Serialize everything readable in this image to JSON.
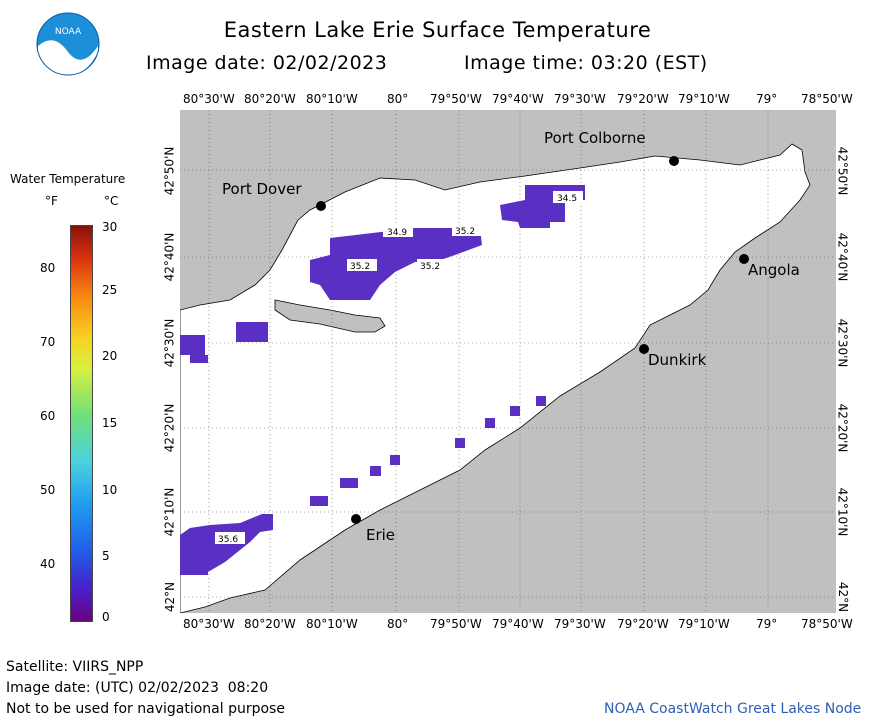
{
  "header": {
    "title": "Eastern Lake Erie Surface Temperature",
    "image_date": "Image date: 02/02/2023",
    "image_time": "Image time: 03:20 (EST)",
    "logo_text": "NOAA"
  },
  "legend": {
    "title": "Water Temperature",
    "unit_f": "°F",
    "unit_c": "°C",
    "f_ticks": [
      "80",
      "70",
      "60",
      "50",
      "40"
    ],
    "c_ticks": [
      "30",
      "25",
      "20",
      "15",
      "10",
      "5",
      "0"
    ]
  },
  "map": {
    "lon_labels": [
      "80°30'W",
      "80°20'W",
      "80°10'W",
      "80°",
      "79°50'W",
      "79°40'W",
      "79°30'W",
      "79°20'W",
      "79°10'W",
      "79°",
      "78°50'W"
    ],
    "lat_labels": [
      "42°50'N",
      "42°40'N",
      "42°30'N",
      "42°20'N",
      "42°10'N",
      "42°N"
    ],
    "places": {
      "port_colborne": "Port Colborne",
      "port_dover": "Port Dover",
      "angola": "Angola",
      "dunkirk": "Dunkirk",
      "erie": "Erie"
    },
    "temp_labels": [
      "34.5",
      "34.9",
      "35.2",
      "35.2",
      "35.2",
      "35.6"
    ],
    "colors": {
      "land": "#c0c0c0",
      "lake": "#ffffff",
      "cold_water": "#5a2fc4"
    }
  },
  "footer": {
    "satellite": "Satellite: VIIRS_NPP",
    "utc_date": "Image date: (UTC) 02/02/2023  08:20",
    "disclaimer": "Not to be used for navigational purpose",
    "node": "NOAA CoastWatch Great Lakes Node"
  }
}
